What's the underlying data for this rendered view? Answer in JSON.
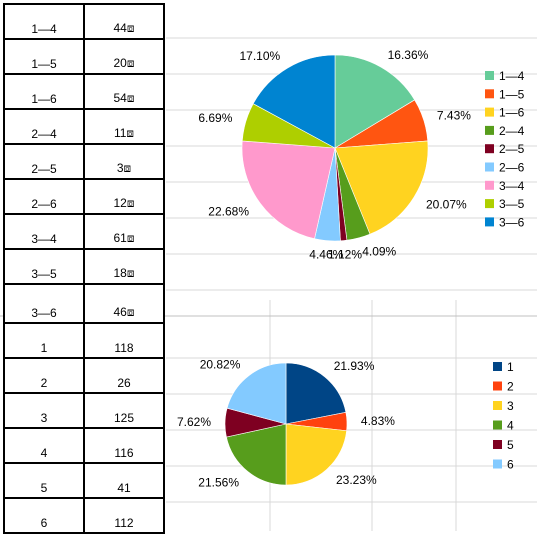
{
  "tables": {
    "pairs": {
      "rows": [
        {
          "k": "1—4",
          "v": "44⧈"
        },
        {
          "k": "1—5",
          "v": "20⧈"
        },
        {
          "k": "1—6",
          "v": "54⧈"
        },
        {
          "k": "2—4",
          "v": "11⧈"
        },
        {
          "k": "2—5",
          "v": "3⧈"
        },
        {
          "k": "2—6",
          "v": "12⧈"
        },
        {
          "k": "3—4",
          "v": "61⧈"
        },
        {
          "k": "3—5",
          "v": "18⧈"
        },
        {
          "k": "3—6",
          "v": "46⧈"
        }
      ]
    },
    "singles": {
      "rows": [
        {
          "k": "1",
          "v": "118"
        },
        {
          "k": "2",
          "v": "26"
        },
        {
          "k": "3",
          "v": "125"
        },
        {
          "k": "4",
          "v": "116"
        },
        {
          "k": "5",
          "v": "41"
        },
        {
          "k": "6",
          "v": "112"
        }
      ]
    }
  },
  "chart_data": [
    {
      "type": "pie",
      "categories": [
        "1—4",
        "1—5",
        "1—6",
        "2—4",
        "2—5",
        "2—6",
        "3—4",
        "3—5",
        "3—6"
      ],
      "values": [
        44,
        20,
        54,
        11,
        3,
        12,
        61,
        18,
        46
      ],
      "data_labels": [
        "16.36%",
        "7.43%",
        "20.07%",
        "4.09%",
        "1.12%",
        "4.46%",
        "22.68%",
        "6.69%",
        "17.10%"
      ],
      "colors": [
        "#66cc99",
        "#ff5511",
        "#ffd320",
        "#579d1c",
        "#7e0021",
        "#83caff",
        "#ff99cc",
        "#aecf00",
        "#0084d1"
      ],
      "legend_position": "right"
    },
    {
      "type": "pie",
      "categories": [
        "1",
        "2",
        "3",
        "4",
        "5",
        "6"
      ],
      "values": [
        118,
        26,
        125,
        116,
        41,
        112
      ],
      "data_labels": [
        "21.93%",
        "4.83%",
        "23.23%",
        "21.56%",
        "7.62%",
        "20.82%"
      ],
      "colors": [
        "#004586",
        "#ff420e",
        "#ffd320",
        "#579d1c",
        "#7e0021",
        "#83caff"
      ],
      "legend_position": "right"
    }
  ]
}
